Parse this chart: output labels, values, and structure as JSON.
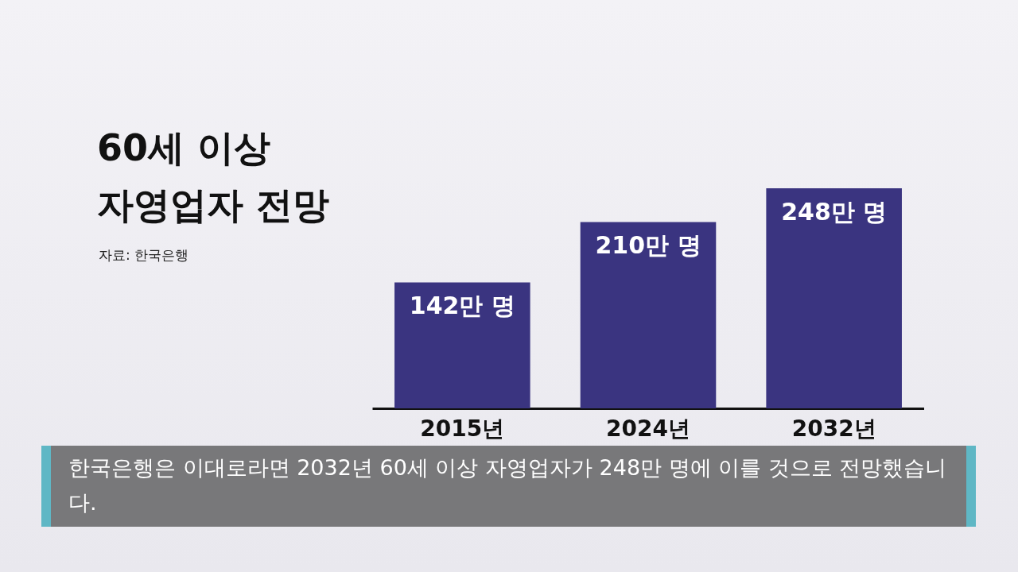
{
  "chart_data": {
    "type": "bar",
    "title": "60세 이상 자영업자 전망",
    "categories": [
      "2015년",
      "2024년",
      "2032년"
    ],
    "values": [
      142,
      210,
      248
    ],
    "value_labels": [
      "142만 명",
      "210만 명",
      "248만 명"
    ],
    "color": "#3a3480",
    "annotations": [
      "자료: 한국은행",
      "한국은행은 이대로라면 2032년 60세 이상 자영업자가 248만 명에 이를 것으로 전망했습니다."
    ]
  }
}
